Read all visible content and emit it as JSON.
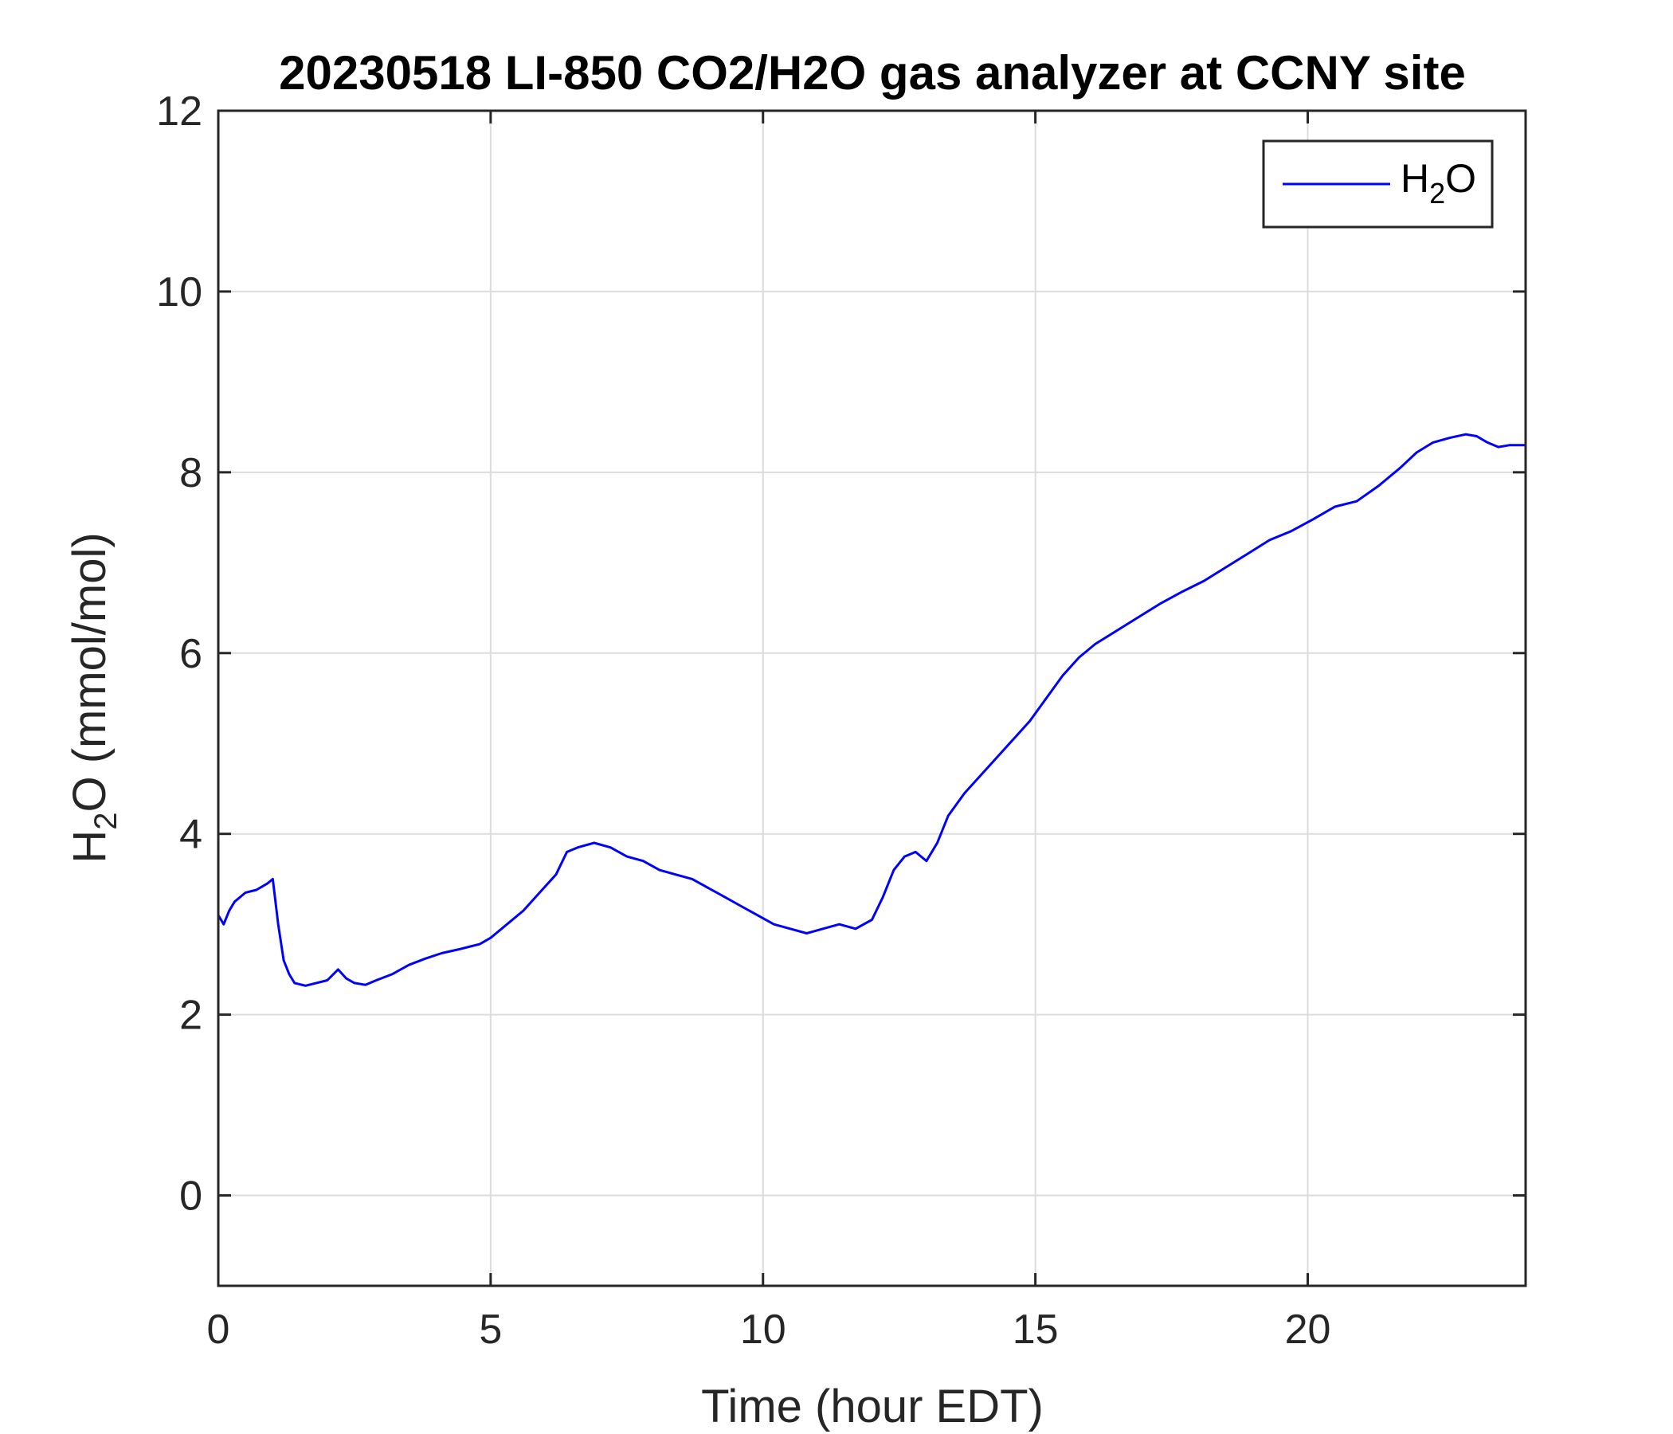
{
  "chart_data": {
    "type": "line",
    "title": "20230518 LI-850 CO2/H2O gas analyzer at CCNY site",
    "xlabel": "Time (hour EDT)",
    "ylabel_main": "H",
    "ylabel_sub": "2",
    "ylabel_tail": "O (mmol/mol)",
    "xlim": [
      0,
      24
    ],
    "ylim": [
      -1,
      12
    ],
    "xticks": [
      0,
      5,
      10,
      15,
      20
    ],
    "yticks": [
      0,
      2,
      4,
      6,
      8,
      10,
      12
    ],
    "grid": true,
    "legend_position": "top-right",
    "series": [
      {
        "legend_main": "H",
        "legend_sub": "2",
        "legend_tail": "O",
        "color": "#0000ff",
        "x": [
          0.0,
          0.1,
          0.2,
          0.3,
          0.5,
          0.7,
          0.9,
          1.0,
          1.1,
          1.2,
          1.3,
          1.4,
          1.6,
          1.8,
          2.0,
          2.2,
          2.35,
          2.5,
          2.7,
          2.9,
          3.2,
          3.5,
          3.8,
          4.1,
          4.4,
          4.6,
          4.8,
          5.0,
          5.3,
          5.6,
          5.9,
          6.2,
          6.4,
          6.6,
          6.9,
          7.2,
          7.5,
          7.8,
          8.1,
          8.4,
          8.7,
          9.0,
          9.3,
          9.6,
          9.9,
          10.2,
          10.5,
          10.8,
          11.1,
          11.4,
          11.7,
          12.0,
          12.2,
          12.4,
          12.6,
          12.8,
          13.0,
          13.2,
          13.4,
          13.7,
          14.0,
          14.3,
          14.6,
          14.9,
          15.2,
          15.5,
          15.8,
          16.1,
          16.5,
          16.9,
          17.3,
          17.7,
          18.1,
          18.5,
          18.9,
          19.3,
          19.7,
          20.1,
          20.5,
          20.9,
          21.3,
          21.7,
          22.0,
          22.3,
          22.6,
          22.9,
          23.1,
          23.3,
          23.5,
          23.7,
          24.0
        ],
        "y": [
          3.1,
          3.0,
          3.15,
          3.25,
          3.35,
          3.38,
          3.45,
          3.5,
          3.0,
          2.6,
          2.45,
          2.35,
          2.32,
          2.35,
          2.38,
          2.5,
          2.4,
          2.35,
          2.33,
          2.38,
          2.45,
          2.55,
          2.62,
          2.68,
          2.72,
          2.75,
          2.78,
          2.85,
          3.0,
          3.15,
          3.35,
          3.55,
          3.8,
          3.85,
          3.9,
          3.85,
          3.75,
          3.7,
          3.6,
          3.55,
          3.5,
          3.4,
          3.3,
          3.2,
          3.1,
          3.0,
          2.95,
          2.9,
          2.95,
          3.0,
          2.95,
          3.05,
          3.3,
          3.6,
          3.75,
          3.8,
          3.7,
          3.9,
          4.2,
          4.45,
          4.65,
          4.85,
          5.05,
          5.25,
          5.5,
          5.75,
          5.95,
          6.1,
          6.25,
          6.4,
          6.55,
          6.68,
          6.8,
          6.95,
          7.1,
          7.25,
          7.35,
          7.48,
          7.62,
          7.68,
          7.85,
          8.05,
          8.22,
          8.33,
          8.38,
          8.42,
          8.4,
          8.33,
          8.28,
          8.3,
          8.3
        ]
      }
    ]
  }
}
